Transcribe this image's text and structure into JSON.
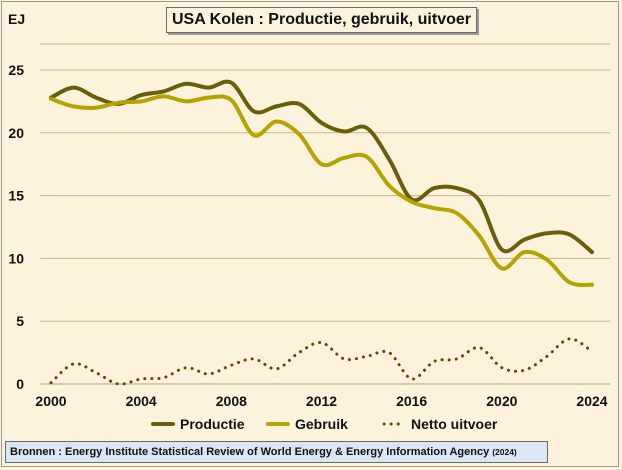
{
  "chart_data": {
    "type": "line",
    "title": "USA Kolen : Productie, gebruik, uitvoer",
    "ylabel": "EJ",
    "xlabel": "",
    "xlim": [
      2000,
      2024
    ],
    "ylim": [
      0,
      25
    ],
    "x_ticks": [
      2000,
      2004,
      2008,
      2012,
      2016,
      2020,
      2024
    ],
    "y_ticks": [
      0,
      5,
      10,
      15,
      20,
      25
    ],
    "grid": "horizontal",
    "legend_position": "bottom",
    "x": [
      2000,
      2001,
      2002,
      2003,
      2004,
      2005,
      2006,
      2007,
      2008,
      2009,
      2010,
      2011,
      2012,
      2013,
      2014,
      2015,
      2016,
      2017,
      2018,
      2019,
      2020,
      2021,
      2022,
      2023,
      2024
    ],
    "series": [
      {
        "name": "Productie",
        "color": "#6b5e0a",
        "style": "solid",
        "values": [
          22.8,
          23.6,
          22.8,
          22.3,
          23.0,
          23.3,
          23.9,
          23.6,
          24.0,
          21.7,
          22.1,
          22.3,
          20.8,
          20.1,
          20.4,
          17.9,
          14.7,
          15.6,
          15.6,
          14.6,
          10.7,
          11.5,
          12.0,
          11.9,
          10.5
        ]
      },
      {
        "name": "Gebruik",
        "color": "#b5a300",
        "style": "solid",
        "values": [
          22.7,
          22.1,
          22.0,
          22.4,
          22.5,
          22.9,
          22.5,
          22.8,
          22.6,
          19.8,
          20.9,
          19.9,
          17.5,
          18.0,
          18.1,
          15.8,
          14.5,
          14.0,
          13.6,
          11.8,
          9.2,
          10.5,
          9.9,
          8.1,
          7.9
        ]
      },
      {
        "name": "Netto uitvoer",
        "color": "#7a3b00",
        "style": "dotted",
        "values": [
          0.1,
          1.6,
          0.9,
          0.0,
          0.4,
          0.5,
          1.3,
          0.8,
          1.5,
          2.0,
          1.2,
          2.5,
          3.3,
          2.0,
          2.2,
          2.5,
          0.4,
          1.8,
          2.0,
          2.9,
          1.3,
          1.1,
          2.2,
          3.6,
          2.6
        ]
      }
    ],
    "y_tick_labels": [
      "0",
      "5",
      "10",
      "15",
      "20",
      "25"
    ],
    "x_tick_labels": [
      "2000",
      "2004",
      "2008",
      "2012",
      "2016",
      "2020",
      "2024"
    ]
  },
  "source": {
    "text": "Bronnen : Energy Institute Statistical Review of World Energy & Energy Information Agency",
    "year": "(2024)"
  },
  "colors": {
    "background": "#fdf3dc",
    "gridline": "#c8b48a",
    "source_box": "#dbe6f5"
  }
}
